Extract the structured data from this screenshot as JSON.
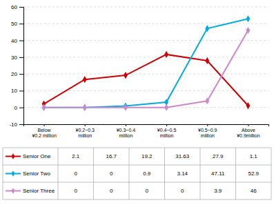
{
  "chart_data": {
    "type": "line",
    "categories": [
      "Below\n¥0.2 million",
      "¥0.2~0.3\nmillion",
      "¥0.3~0.4\nmillion",
      "¥0.4~0.5\nmillion",
      "¥0.5~0.9\nmillion",
      "Above\n¥0.9million"
    ],
    "series": [
      {
        "name": "Senior One",
        "color": "#cc0000",
        "marker": "diamond",
        "values": [
          2.1,
          16.7,
          19.2,
          31.63,
          27.9,
          1.1
        ]
      },
      {
        "name": "Senior Two",
        "color": "#00aadd",
        "marker": "diamond",
        "values": [
          0,
          0,
          0.9,
          3.14,
          47.11,
          52.9
        ]
      },
      {
        "name": "Senior Three",
        "color": "#cc88cc",
        "marker": "diamond",
        "values": [
          0,
          0,
          0,
          0,
          3.9,
          46
        ]
      }
    ],
    "ylim": [
      -10,
      60
    ],
    "yticks": [
      -10,
      0,
      10,
      20,
      30,
      40,
      50,
      60
    ],
    "grid": true,
    "legend": "bottom"
  }
}
